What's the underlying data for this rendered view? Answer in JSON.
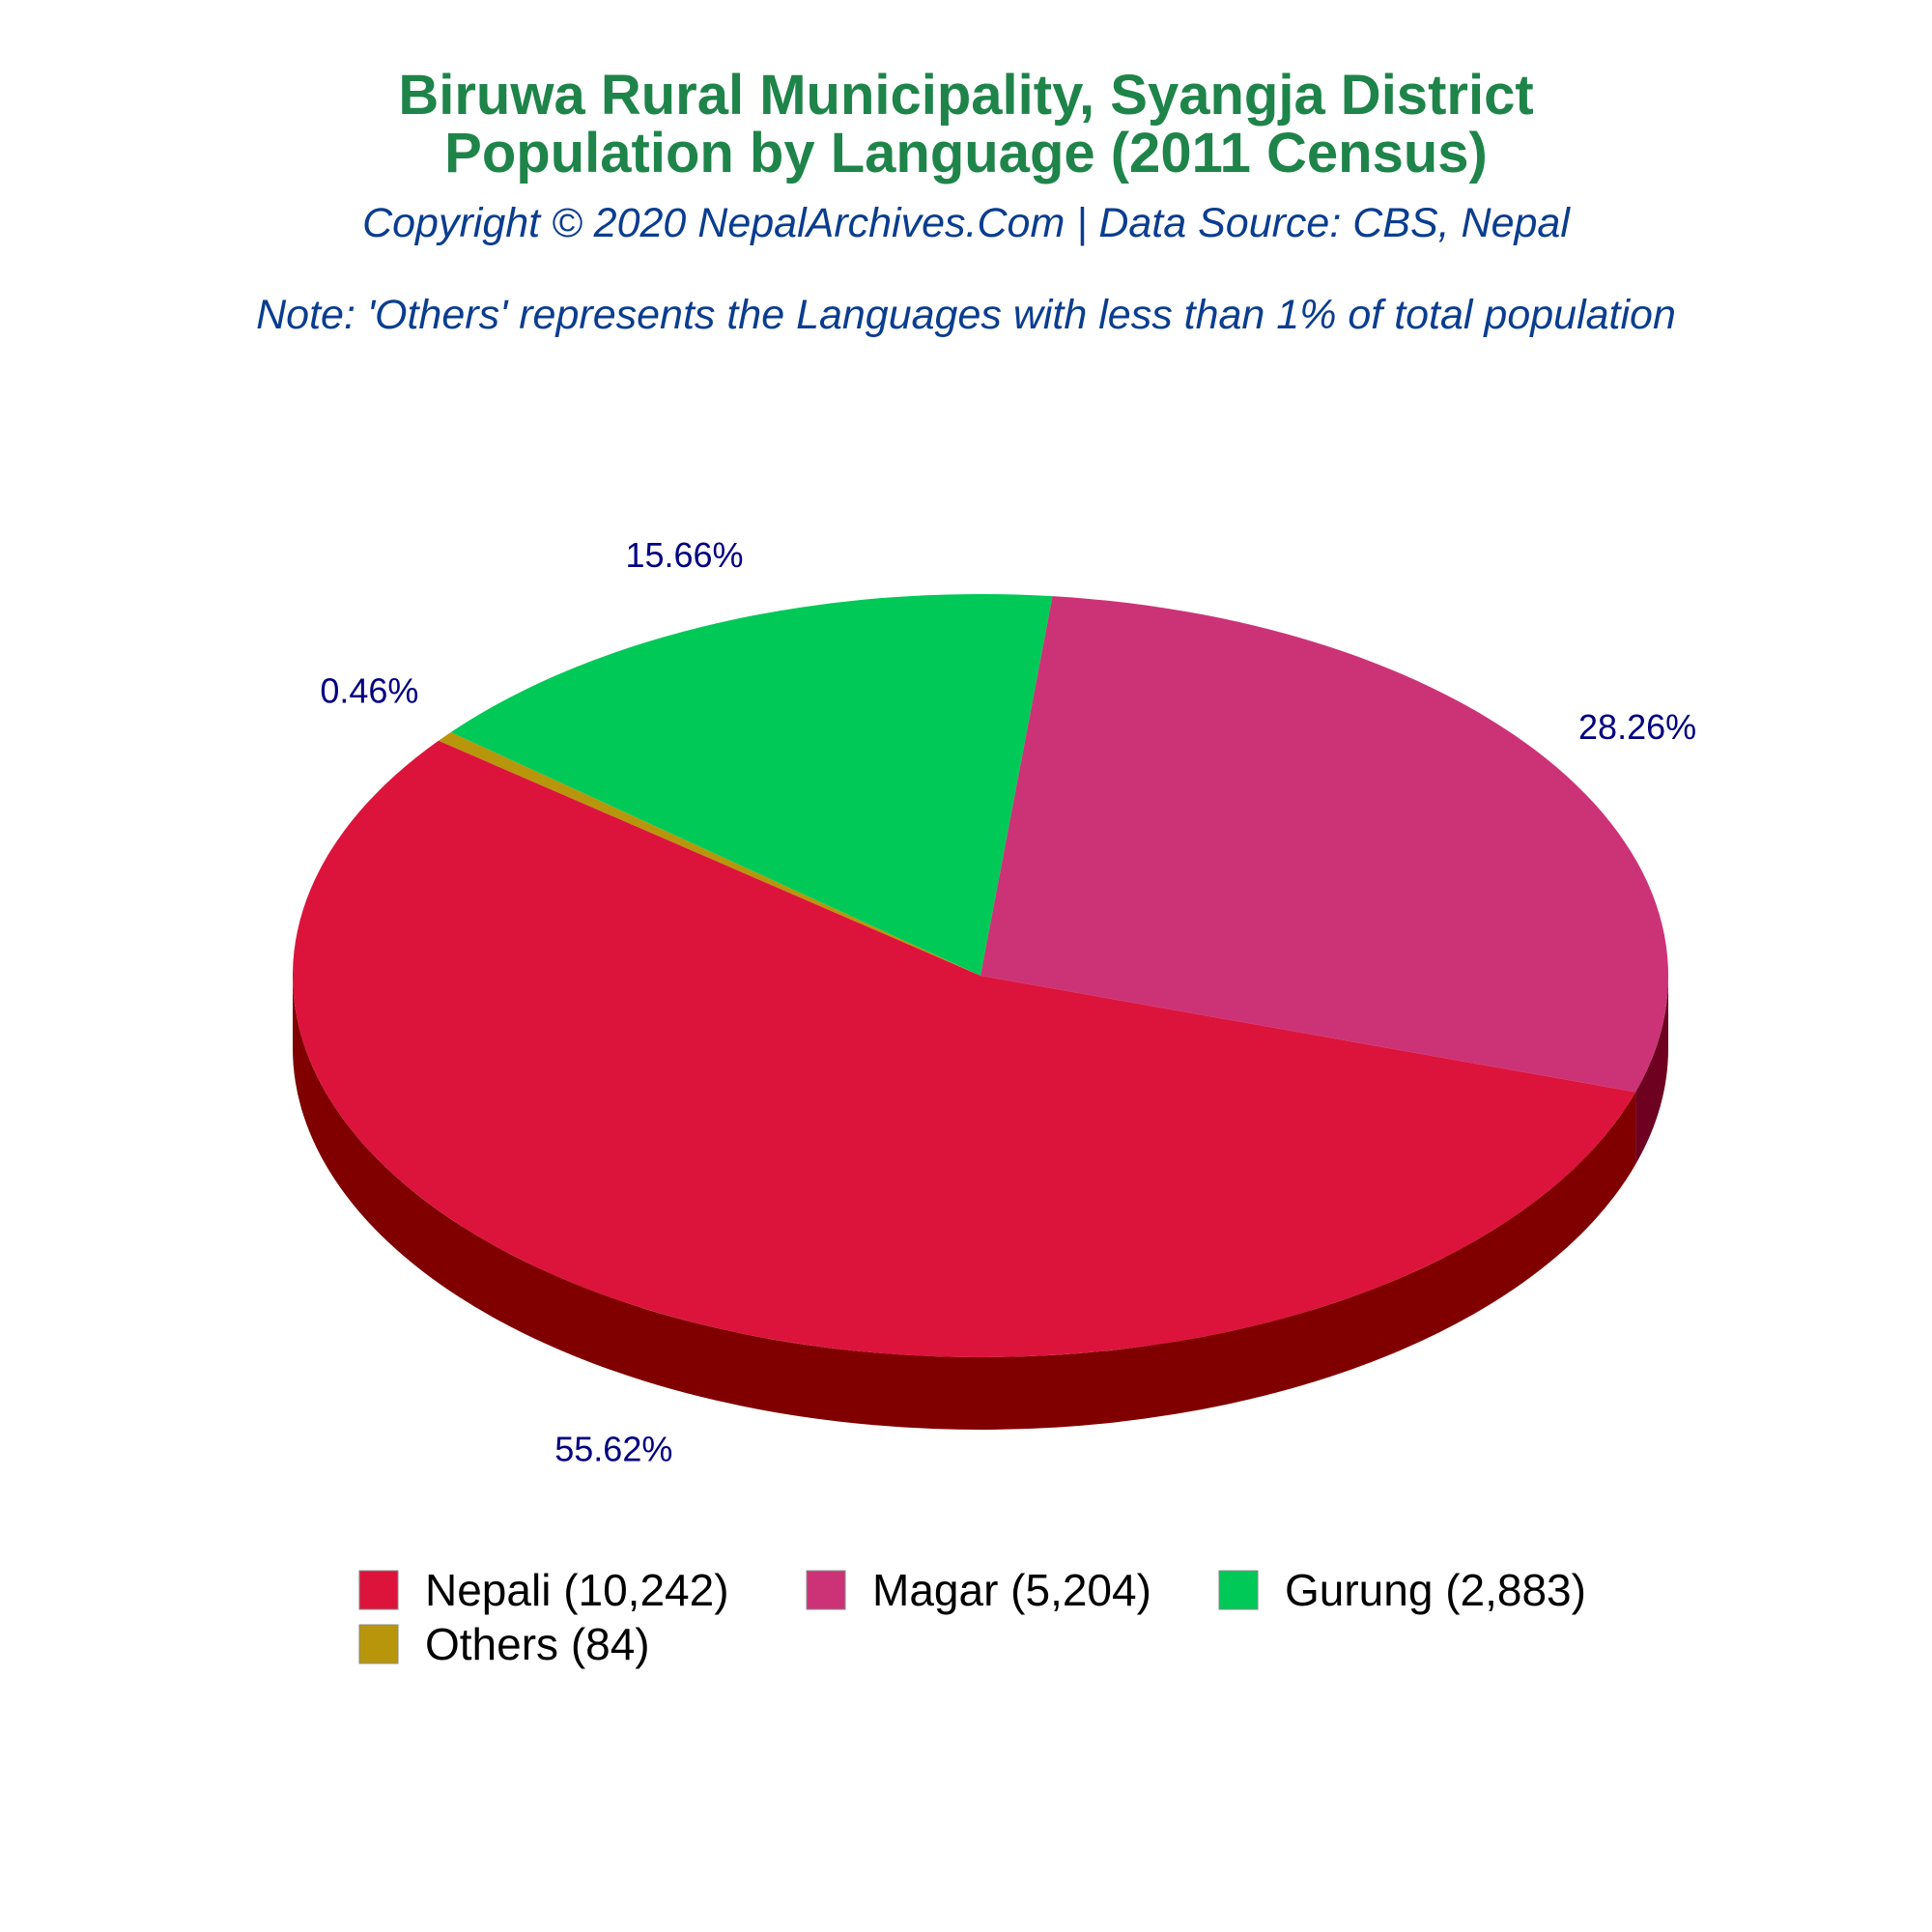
{
  "header": {
    "title_line1": "Biruwa Rural Municipality, Syangja District",
    "title_line2": "Population by Language (2011 Census)",
    "subtitle": "Copyright © 2020 NepalArchives.Com | Data Source: CBS, Nepal",
    "note": "Note: 'Others' represents the Languages with less than 1% of total population"
  },
  "chart_data": {
    "type": "pie",
    "title": "Biruwa Rural Municipality, Syangja District Population by Language (2011 Census)",
    "categories": [
      "Nepali",
      "Magar",
      "Gurung",
      "Others"
    ],
    "values": [
      10242,
      5204,
      2883,
      84
    ],
    "percent_labels": [
      "55.62%",
      "28.26%",
      "15.66%",
      "0.46%"
    ],
    "legend_labels": [
      "Nepali (10,242)",
      "Magar (5,204)",
      "Gurung (2,883)",
      "Others (84)"
    ],
    "colors": [
      "#dc143c",
      "#cc3377",
      "#00c957",
      "#b8960c"
    ],
    "side_colors": [
      "#800000",
      "#6e0020",
      "#006400",
      "#6e5a08"
    ],
    "style": "3d-tilted",
    "legend_position": "bottom"
  }
}
